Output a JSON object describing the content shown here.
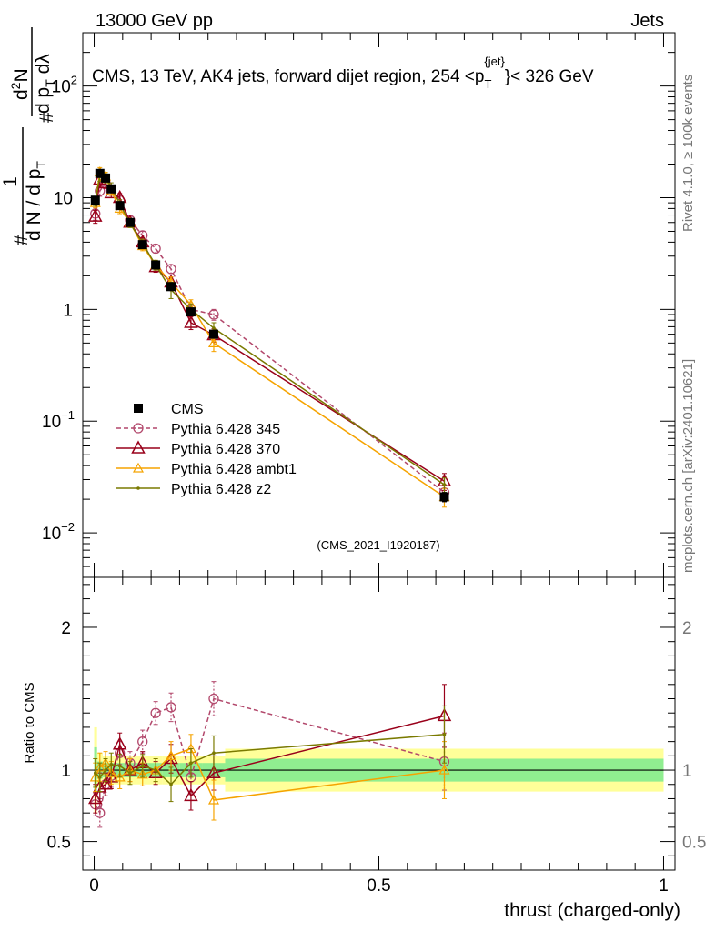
{
  "header": {
    "left": "13000 GeV pp",
    "right": "Jets"
  },
  "side_labels": {
    "rivet": "Rivet 4.1.0, ≥ 100k events",
    "mcplots": "mcplots.cern.ch [arXiv:2401.10621]"
  },
  "watermark": "(CMS_2021_I1920187)",
  "colors": {
    "cms": "#000000",
    "p345": "#b2476b",
    "p370": "#99001a",
    "ambt1": "#f5a300",
    "z2": "#7a7a00",
    "band_inner": "#90ee90",
    "band_outer": "#ffff99"
  },
  "chart_data": [
    {
      "type": "line",
      "panel": "main",
      "title": "CMS, 13 TeV, AK4 jets, forward dijet region, 254 <p_T^{jet}< 326 GeV",
      "title_parts": {
        "prefix": "CMS, 13 TeV, AK4 jets, forward dijet region, 254 <p",
        "sub": "T",
        "sup": "{jet}",
        "suffix": "}< 326 GeV"
      },
      "ylabel": "1/(dN/dp_T) d²N/(dp_T dλ)",
      "ylabel_parts": {
        "top_num": "d",
        "top_num_sup": "2",
        "top_num_tail": "N",
        "top_den": "d p",
        "top_den_sub": "T",
        "top_den_tail": " dλ",
        "one": "1",
        "bot_den": "d N / d p",
        "bot_den_sub": "T",
        "hash": "#"
      },
      "yscale": "log",
      "ylim": [
        0.004,
        300
      ],
      "xlim": [
        -0.02,
        1.02
      ],
      "y_ticks": [
        {
          "base": "10",
          "exp": "−2",
          "value": 0.01
        },
        {
          "base": "10",
          "exp": "−1",
          "value": 0.1
        },
        {
          "base": "1",
          "exp": "",
          "value": 1
        },
        {
          "base": "10",
          "exp": "",
          "value": 10
        },
        {
          "base": "10",
          "exp": "2",
          "value": 100
        }
      ],
      "legend": [
        "CMS",
        "Pythia 6.428 345",
        "Pythia 6.428 370",
        "Pythia 6.428 ambt1",
        "Pythia 6.428 z2"
      ],
      "series": [
        {
          "name": "CMS",
          "x": [
            0.002,
            0.01,
            0.02,
            0.03,
            0.045,
            0.063,
            0.085,
            0.108,
            0.135,
            0.17,
            0.21,
            0.615
          ],
          "y": [
            9.5,
            16.5,
            15.0,
            12.0,
            8.5,
            6.0,
            3.8,
            2.5,
            1.6,
            0.95,
            0.6,
            0.021
          ],
          "err": [
            0.5,
            0.8,
            0.7,
            0.6,
            0.4,
            0.3,
            0.2,
            0.15,
            0.1,
            0.06,
            0.04,
            0.002
          ]
        },
        {
          "name": "Pythia 6.428 345",
          "x": [
            0.002,
            0.01,
            0.02,
            0.03,
            0.045,
            0.063,
            0.085,
            0.108,
            0.135,
            0.17,
            0.21,
            0.615
          ],
          "y": [
            7.2,
            11.5,
            13.5,
            11.5,
            9.5,
            6.3,
            4.6,
            3.5,
            2.3,
            1.0,
            0.9,
            0.023
          ],
          "err": [
            0.9,
            1.2,
            1.2,
            1.0,
            0.8,
            0.5,
            0.4,
            0.3,
            0.2,
            0.1,
            0.1,
            0.004
          ]
        },
        {
          "name": "Pythia 6.428 370",
          "x": [
            0.002,
            0.01,
            0.02,
            0.03,
            0.045,
            0.063,
            0.085,
            0.108,
            0.135,
            0.17,
            0.21,
            0.615
          ],
          "y": [
            6.8,
            14.5,
            13.5,
            11.0,
            10.0,
            6.0,
            4.0,
            2.4,
            1.75,
            0.76,
            0.59,
            0.029
          ],
          "err": [
            0.9,
            1.5,
            1.4,
            1.0,
            0.9,
            0.5,
            0.4,
            0.25,
            0.2,
            0.1,
            0.08,
            0.005
          ]
        },
        {
          "name": "Pythia 6.428 ambt1",
          "x": [
            0.002,
            0.01,
            0.02,
            0.03,
            0.045,
            0.063,
            0.085,
            0.108,
            0.135,
            0.17,
            0.21,
            0.615
          ],
          "y": [
            9.0,
            17.0,
            15.5,
            11.5,
            8.0,
            6.0,
            3.7,
            2.5,
            1.75,
            1.1,
            0.5,
            0.021
          ],
          "err": [
            0.9,
            1.6,
            1.4,
            1.0,
            0.8,
            0.5,
            0.35,
            0.25,
            0.2,
            0.12,
            0.08,
            0.004
          ]
        },
        {
          "name": "Pythia 6.428 z2",
          "x": [
            0.002,
            0.01,
            0.02,
            0.03,
            0.045,
            0.063,
            0.085,
            0.108,
            0.135,
            0.17,
            0.21,
            0.615
          ],
          "y": [
            9.3,
            15.5,
            15.0,
            12.5,
            8.8,
            5.9,
            3.9,
            2.5,
            1.5,
            1.0,
            0.68,
            0.027
          ],
          "err": [
            0.9,
            1.5,
            1.4,
            1.1,
            0.8,
            0.5,
            0.35,
            0.25,
            0.25,
            0.12,
            0.08,
            0.004
          ]
        }
      ]
    },
    {
      "type": "line",
      "panel": "ratio",
      "ylabel": "Ratio to CMS",
      "xlabel": "thrust (charged-only)",
      "ylim": [
        0.3,
        2.35
      ],
      "xlim": [
        -0.02,
        1.02
      ],
      "x_ticks": [
        "0",
        "0.5",
        "1"
      ],
      "x_tick_values": [
        0,
        0.5,
        1
      ],
      "y_ticks": [
        "0.5",
        "1",
        "2"
      ],
      "y_tick_values": [
        0.5,
        1,
        2
      ],
      "band": {
        "x_edges": [
          0,
          0.005,
          0.015,
          0.025,
          0.035,
          0.055,
          0.075,
          0.095,
          0.12,
          0.15,
          0.19,
          0.23,
          1.0
        ],
        "inner": [
          0.16,
          0.06,
          0.05,
          0.05,
          0.05,
          0.05,
          0.05,
          0.05,
          0.05,
          0.05,
          0.05,
          0.08
        ],
        "outer": [
          0.3,
          0.12,
          0.1,
          0.1,
          0.1,
          0.1,
          0.1,
          0.1,
          0.1,
          0.1,
          0.1,
          0.15
        ]
      },
      "series": [
        {
          "name": "Pythia 6.428 345",
          "x": [
            0.002,
            0.01,
            0.02,
            0.03,
            0.045,
            0.063,
            0.085,
            0.108,
            0.135,
            0.17,
            0.21,
            0.615
          ],
          "y": [
            0.76,
            0.7,
            0.9,
            0.96,
            1.12,
            1.05,
            1.2,
            1.4,
            1.44,
            0.95,
            1.5,
            1.06
          ],
          "err": [
            0.08,
            0.1,
            0.08,
            0.08,
            0.08,
            0.08,
            0.08,
            0.08,
            0.1,
            0.1,
            0.12,
            0.2
          ]
        },
        {
          "name": "Pythia 6.428 370",
          "x": [
            0.002,
            0.01,
            0.02,
            0.03,
            0.045,
            0.063,
            0.085,
            0.108,
            0.135,
            0.17,
            0.21,
            0.615
          ],
          "y": [
            0.8,
            0.88,
            0.9,
            0.95,
            1.18,
            1.0,
            1.05,
            0.98,
            1.08,
            0.82,
            0.98,
            1.38
          ],
          "err": [
            0.1,
            0.1,
            0.08,
            0.08,
            0.08,
            0.08,
            0.08,
            0.08,
            0.1,
            0.1,
            0.12,
            0.22
          ]
        },
        {
          "name": "Pythia 6.428 ambt1",
          "x": [
            0.002,
            0.01,
            0.02,
            0.03,
            0.045,
            0.063,
            0.085,
            0.108,
            0.135,
            0.17,
            0.21,
            0.615
          ],
          "y": [
            0.95,
            1.02,
            1.05,
            0.98,
            0.95,
            1.0,
            0.97,
            1.0,
            1.1,
            1.15,
            0.79,
            1.0
          ],
          "err": [
            0.1,
            0.1,
            0.08,
            0.08,
            0.08,
            0.08,
            0.08,
            0.08,
            0.1,
            0.1,
            0.14,
            0.2
          ]
        },
        {
          "name": "Pythia 6.428 z2",
          "x": [
            0.002,
            0.01,
            0.02,
            0.03,
            0.045,
            0.063,
            0.085,
            0.108,
            0.135,
            0.17,
            0.21,
            0.615
          ],
          "y": [
            0.98,
            0.95,
            1.0,
            1.04,
            1.03,
            0.98,
            1.03,
            1.0,
            0.9,
            1.05,
            1.12,
            1.25
          ],
          "err": [
            0.1,
            0.1,
            0.08,
            0.08,
            0.08,
            0.08,
            0.08,
            0.08,
            0.12,
            0.1,
            0.12,
            0.2
          ]
        }
      ]
    }
  ]
}
